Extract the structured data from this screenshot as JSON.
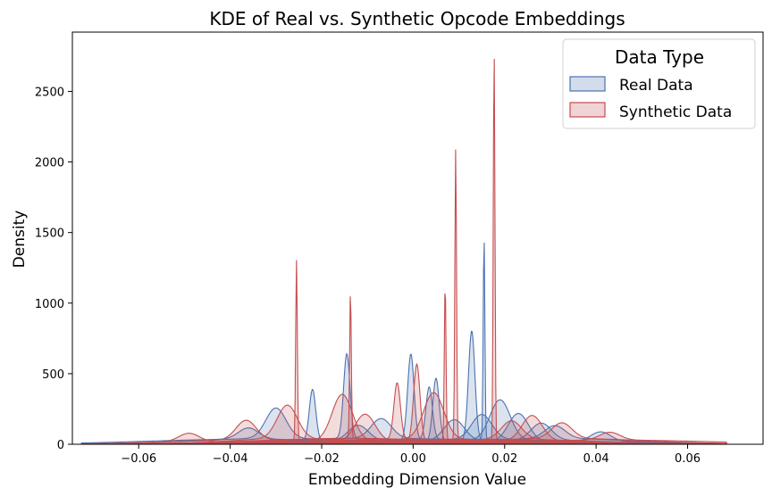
{
  "chart_data": {
    "type": "area",
    "title": "KDE of Real vs. Synthetic Opcode Embeddings",
    "xlabel": "Embedding Dimension Value",
    "ylabel": "Density",
    "xlim": [
      -0.0745,
      0.0765
    ],
    "ylim": [
      0,
      2920
    ],
    "x_ticks": [
      -0.06,
      -0.04,
      -0.02,
      0.0,
      0.02,
      0.04,
      0.06
    ],
    "x_tick_labels": [
      "−0.06",
      "−0.04",
      "−0.02",
      "0.00",
      "0.02",
      "0.04",
      "0.06"
    ],
    "y_ticks": [
      0,
      500,
      1000,
      1500,
      2000,
      2500
    ],
    "y_tick_labels": [
      "0",
      "500",
      "1000",
      "1500",
      "2000",
      "2500"
    ],
    "legend": {
      "title": "Data Type",
      "position": "top-right",
      "entries": [
        "Real Data",
        "Synthetic Data"
      ]
    },
    "colors": {
      "Real Data": "#4c72b0",
      "Synthetic Data": "#c44e52"
    },
    "series": [
      {
        "name": "Real Data",
        "peaks": [
          {
            "center": 0.0155,
            "height": 1440
          },
          {
            "center": 0.0128,
            "height": 780
          },
          {
            "center": -0.0145,
            "height": 600
          },
          {
            "center": -0.0005,
            "height": 610
          },
          {
            "center": 0.005,
            "height": 450
          },
          {
            "center": 0.0035,
            "height": 370
          },
          {
            "center": -0.022,
            "height": 365
          },
          {
            "center": -0.03,
            "height": 215
          },
          {
            "center": 0.019,
            "height": 285
          },
          {
            "center": 0.023,
            "height": 200
          },
          {
            "center": 0.015,
            "height": 175
          },
          {
            "center": 0.009,
            "height": 150
          },
          {
            "center": -0.007,
            "height": 140
          },
          {
            "center": 0.028,
            "height": 120
          },
          {
            "center": 0.041,
            "height": 70
          },
          {
            "center": -0.036,
            "height": 80
          },
          {
            "center": -0.012,
            "height": 110
          },
          {
            "center": 0.031,
            "height": 90
          }
        ]
      },
      {
        "name": "Synthetic Data",
        "peaks": [
          {
            "center": 0.0177,
            "height": 2780
          },
          {
            "center": 0.0093,
            "height": 2065
          },
          {
            "center": -0.0255,
            "height": 1280
          },
          {
            "center": -0.0137,
            "height": 1045
          },
          {
            "center": 0.007,
            "height": 1120
          },
          {
            "center": 0.0008,
            "height": 550
          },
          {
            "center": -0.0035,
            "height": 400
          },
          {
            "center": -0.0155,
            "height": 330
          },
          {
            "center": -0.0275,
            "height": 235
          },
          {
            "center": -0.0365,
            "height": 140
          },
          {
            "center": -0.0105,
            "height": 195
          },
          {
            "center": 0.0045,
            "height": 330
          },
          {
            "center": 0.026,
            "height": 180
          },
          {
            "center": 0.0325,
            "height": 110
          },
          {
            "center": 0.043,
            "height": 55
          },
          {
            "center": -0.049,
            "height": 60
          },
          {
            "center": 0.0215,
            "height": 130
          }
        ]
      }
    ]
  }
}
